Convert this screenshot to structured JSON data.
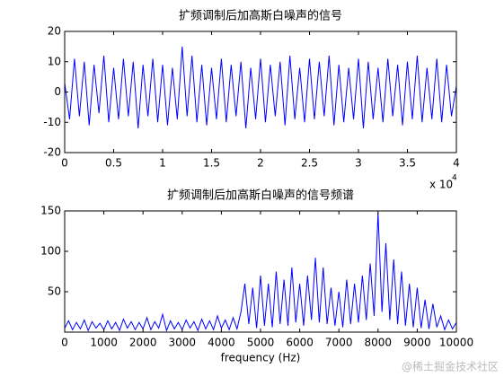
{
  "chart_data": [
    {
      "type": "line",
      "title": "扩频调制后加高斯白噪声的信号",
      "color": "#0000ff",
      "x_multiplier": "x 10",
      "x_multiplier_exponent": "4",
      "x": [
        0,
        500,
        1000,
        1500,
        2000,
        2500,
        3000,
        3500,
        4000,
        4500,
        5000,
        5500,
        6000,
        6500,
        7000,
        7500,
        8000,
        8500,
        9000,
        9500,
        10000,
        10500,
        11000,
        11500,
        12000,
        12500,
        13000,
        13500,
        14000,
        14500,
        15000,
        15500,
        16000,
        16500,
        17000,
        17500,
        18000,
        18500,
        19000,
        19500,
        20000,
        20500,
        21000,
        21500,
        22000,
        22500,
        23000,
        23500,
        24000,
        24500,
        25000,
        25500,
        26000,
        26500,
        27000,
        27500,
        28000,
        28500,
        29000,
        29500,
        30000,
        30500,
        31000,
        31500,
        32000,
        32500,
        33000,
        33500,
        34000,
        34500,
        35000,
        35500,
        36000,
        36500,
        37000,
        37500,
        38000,
        38500,
        39000,
        39500,
        40000
      ],
      "series": [
        {
          "values": [
            3,
            -9,
            11,
            -8,
            10,
            -11,
            9,
            -7,
            12,
            -10,
            8,
            -9,
            11,
            -8,
            10,
            -12,
            9,
            -8,
            11,
            -10,
            9,
            -11,
            8,
            -9,
            15,
            -8,
            12,
            -10,
            9,
            -11,
            8,
            -9,
            11,
            -10,
            9,
            -8,
            10,
            -12,
            8,
            -9,
            11,
            -10,
            9,
            -8,
            10,
            -11,
            12,
            -9,
            8,
            -10,
            11,
            -9,
            10,
            -8,
            12,
            -11,
            9,
            -10,
            8,
            -9,
            11,
            -12,
            10,
            -9,
            8,
            -10,
            11,
            -8,
            9,
            -11,
            10,
            -9,
            12,
            -10,
            8,
            -9,
            11,
            -10,
            9,
            -8,
            2
          ]
        }
      ],
      "xlim": [
        0,
        40000
      ],
      "xticks": [
        0,
        {
          "value": 5000,
          "label": "0.5"
        },
        {
          "value": 10000,
          "label": "1"
        },
        {
          "value": 15000,
          "label": "1.5"
        },
        {
          "value": 20000,
          "label": "2"
        },
        {
          "value": 25000,
          "label": "2.5"
        },
        {
          "value": 30000,
          "label": "3"
        },
        {
          "value": 35000,
          "label": "3.5"
        },
        {
          "value": 40000,
          "label": "4"
        }
      ],
      "ylim": [
        -20,
        20
      ],
      "yticks": [
        -20,
        -10,
        0,
        10,
        20
      ]
    },
    {
      "type": "line",
      "title": "扩频调制后加高斯白噪声的信号频谱",
      "color": "#0000ff",
      "x_label": "frequency (Hz)",
      "x": [
        0,
        100,
        200,
        300,
        400,
        500,
        600,
        700,
        800,
        900,
        1000,
        1100,
        1200,
        1300,
        1400,
        1500,
        1600,
        1700,
        1800,
        1900,
        2000,
        2100,
        2200,
        2300,
        2400,
        2500,
        2600,
        2700,
        2800,
        2900,
        3000,
        3100,
        3200,
        3300,
        3400,
        3500,
        3600,
        3700,
        3800,
        3900,
        4000,
        4100,
        4200,
        4300,
        4400,
        4500,
        4600,
        4700,
        4800,
        4900,
        5000,
        5100,
        5200,
        5300,
        5400,
        5500,
        5600,
        5700,
        5800,
        5900,
        6000,
        6100,
        6200,
        6300,
        6400,
        6500,
        6600,
        6700,
        6800,
        6900,
        7000,
        7100,
        7200,
        7300,
        7400,
        7500,
        7600,
        7700,
        7800,
        7900,
        8000,
        8100,
        8200,
        8300,
        8400,
        8500,
        8600,
        8700,
        8800,
        8900,
        9000,
        9100,
        9200,
        9300,
        9400,
        9500,
        9600,
        9700,
        9800,
        9900,
        10000
      ],
      "series": [
        {
          "values": [
            5,
            14,
            3,
            12,
            4,
            15,
            2,
            13,
            5,
            11,
            3,
            14,
            4,
            12,
            2,
            16,
            5,
            13,
            3,
            12,
            4,
            18,
            3,
            13,
            5,
            22,
            2,
            14,
            4,
            12,
            3,
            15,
            5,
            13,
            2,
            16,
            4,
            14,
            3,
            20,
            5,
            15,
            3,
            18,
            4,
            25,
            60,
            10,
            55,
            5,
            70,
            8,
            60,
            6,
            75,
            10,
            65,
            8,
            80,
            12,
            60,
            8,
            70,
            15,
            92,
            12,
            80,
            10,
            55,
            8,
            50,
            6,
            65,
            10,
            60,
            12,
            70,
            15,
            85,
            20,
            148,
            25,
            110,
            15,
            90,
            10,
            75,
            8,
            60,
            6,
            55,
            5,
            40,
            4,
            35,
            6,
            20,
            3,
            15,
            4,
            12
          ]
        }
      ],
      "xlim": [
        0,
        10000
      ],
      "xticks": [
        0,
        1000,
        2000,
        3000,
        4000,
        5000,
        6000,
        7000,
        8000,
        9000,
        10000
      ],
      "ylim": [
        0,
        150
      ],
      "yticks": [
        50,
        100,
        150
      ]
    }
  ],
  "watermark": "@稀土掘金技术社区"
}
